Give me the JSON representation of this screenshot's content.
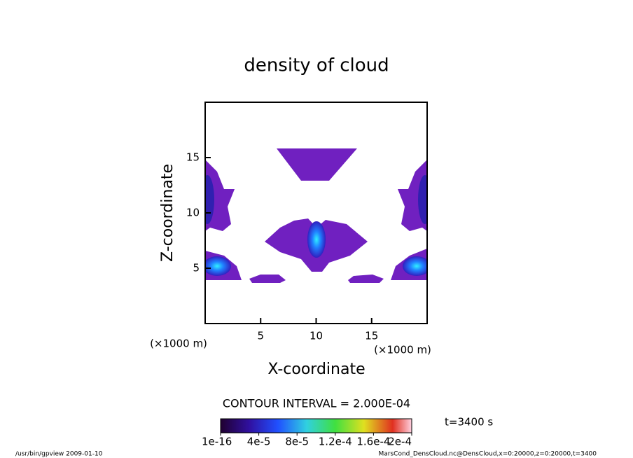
{
  "chart_data": {
    "type": "contour",
    "title": "density of cloud",
    "xlabel": "X-coordinate",
    "ylabel": "Z-coordinate",
    "xunit": "(×1000 m)",
    "yunit": "(×1000 m)",
    "xlim": [
      0,
      20
    ],
    "ylim": [
      0,
      20
    ],
    "xticks": [
      5,
      10,
      15
    ],
    "yticks": [
      5,
      10,
      15
    ],
    "contour_interval": "CONTOUR INTERVAL = 2.000E-04",
    "time": "t=3400 s",
    "clim": [
      1e-16,
      0.0002
    ],
    "colorbar_ticks": [
      {
        "value": 1e-16,
        "label": "1e-16"
      },
      {
        "value": 4e-05,
        "label": "4e-5"
      },
      {
        "value": 8e-05,
        "label": "8e-5"
      },
      {
        "value": 0.00012,
        "label": "1.2e-4"
      },
      {
        "value": 0.00016,
        "label": "1.6e-4"
      },
      {
        "value": 0.0002,
        "label": "2e-4"
      }
    ],
    "footer_left": "/usr/bin/gpview   2009-01-10",
    "footer_right": "MarsCond_DensCloud.nc@DensCloud,x=0:20000,z=0:20000,t=3400"
  }
}
